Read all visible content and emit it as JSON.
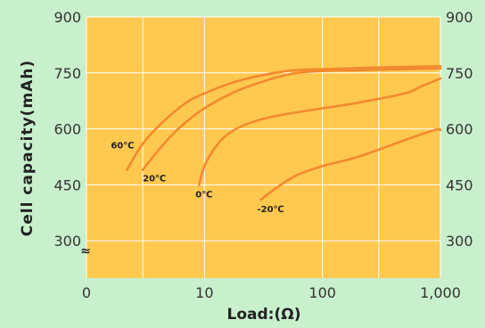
{
  "chart_data": {
    "type": "line",
    "xlabel": "Load:(Ω)",
    "ylabel": "Cell capacity(mAh)",
    "x_scale": "log",
    "xlim": [
      1,
      1000
    ],
    "ylim": [
      200,
      900
    ],
    "x_ticks": [
      {
        "value": 1,
        "label": "0"
      },
      {
        "value": 10,
        "label": "10"
      },
      {
        "value": 100,
        "label": "100"
      },
      {
        "value": 1000,
        "label": "1,000"
      }
    ],
    "y_ticks": [
      300,
      450,
      600,
      750,
      900
    ],
    "axis_break_symbol": "≈",
    "grid": true,
    "colors": {
      "background": "#c8f0cc",
      "plot_area": "#ffc84f",
      "grid": "#ffffff",
      "line": "#f28a2e"
    },
    "series": [
      {
        "name": "60℃",
        "x": [
          2.2,
          3,
          4.5,
          7,
          10,
          20,
          50,
          100,
          200,
          500,
          1000
        ],
        "y": [
          490,
          560,
          620,
          670,
          695,
          730,
          755,
          760,
          763,
          766,
          768
        ]
      },
      {
        "name": "20℃",
        "x": [
          3,
          4,
          6,
          10,
          20,
          50,
          100,
          200,
          500,
          1000
        ],
        "y": [
          490,
          540,
          600,
          655,
          705,
          745,
          755,
          757,
          760,
          762
        ]
      },
      {
        "name": "0℃",
        "x": [
          9,
          10,
          12,
          15,
          20,
          30,
          50,
          100,
          200,
          500,
          700,
          1000
        ],
        "y": [
          450,
          500,
          545,
          580,
          605,
          625,
          640,
          655,
          670,
          695,
          715,
          735
        ]
      },
      {
        "name": "-20℃",
        "x": [
          30,
          40,
          60,
          100,
          200,
          500,
          900,
          1000
        ],
        "y": [
          410,
          440,
          475,
          500,
          525,
          570,
          597,
          597
        ]
      }
    ]
  }
}
